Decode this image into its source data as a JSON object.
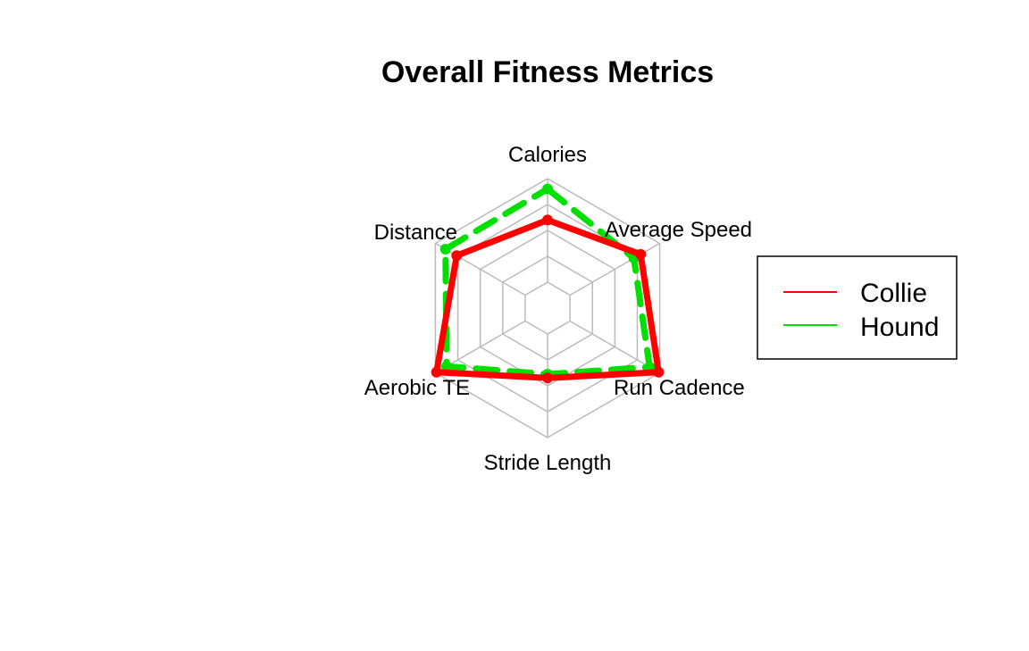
{
  "chart_data": {
    "type": "radar",
    "title": "Overall Fitness Metrics",
    "axes": [
      "Calories",
      "Average Speed",
      "Run Cadence",
      "Stride Length",
      "Aerobic TE",
      "Distance"
    ],
    "range": [
      0,
      1
    ],
    "grid_levels": 5,
    "grid": true,
    "legend_position": "right",
    "series": [
      {
        "name": "Collie",
        "values": [
          0.68,
          0.83,
          0.99,
          0.54,
          0.99,
          0.81
        ],
        "color": "#ff0000",
        "line_style": "solid"
      },
      {
        "name": "Hound",
        "values": [
          0.92,
          0.77,
          0.91,
          0.51,
          0.9,
          0.91
        ],
        "color": "#00e000",
        "line_style": "dashed"
      }
    ]
  }
}
